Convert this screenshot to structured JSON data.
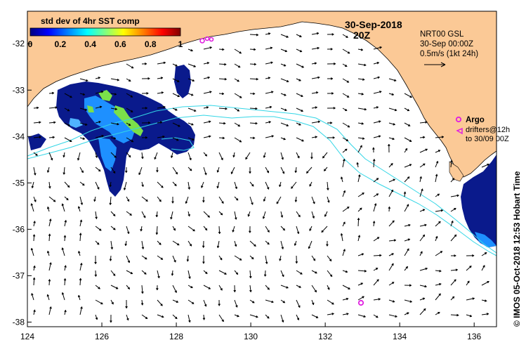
{
  "map": {
    "date": "30-Sep-2018",
    "time": "20Z",
    "colorbar_title": "std dev of 4hr SST comp",
    "colorbar_ticks": [
      "0",
      "0.2",
      "0.4",
      "0.6",
      "0.8",
      "1"
    ],
    "colorbar_min": 0,
    "colorbar_max": 1,
    "colorbar_colors": [
      "#000080",
      "#0000ff",
      "#0080ff",
      "#00ffff",
      "#80ff80",
      "#ffff00",
      "#ff8000",
      "#ff0000",
      "#800000"
    ],
    "model_info": [
      "NRT00 GSL",
      "30-Sep 00:00Z",
      "0.5m/s (1kt 24h)"
    ],
    "argo_label": "Argo",
    "drifter_label_1": "drifters@12h",
    "drifter_label_2": "to 30/09 00Z",
    "side_credit": "© IMOS 05-Oct-2018 12:53 Hobart Time",
    "x_ticks": [
      "124",
      "126",
      "128",
      "130",
      "132",
      "134",
      "136"
    ],
    "y_ticks": [
      "-32",
      "-33",
      "-34",
      "-35",
      "-36",
      "-37",
      "-38"
    ],
    "xlim": [
      124,
      136.6
    ],
    "ylim": [
      -38.1,
      -31.3
    ],
    "colors": {
      "land": "#fbc996",
      "ocean": "#ffffff",
      "sst_deep": "#0a1a8c",
      "sst_mid": "#1e90ff",
      "sst_high": "#7be04a",
      "isobath": "#33d6e6",
      "argo": "#e020e0"
    }
  }
}
